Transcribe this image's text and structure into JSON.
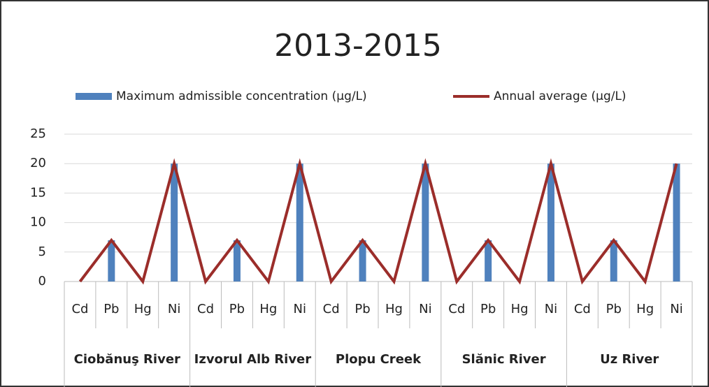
{
  "chart_data": {
    "type": "bar_line",
    "title": "2013-2015",
    "categories": [
      "Cd",
      "Pb",
      "Hg",
      "Ni",
      "Cd",
      "Pb",
      "Hg",
      "Ni",
      "Cd",
      "Pb",
      "Hg",
      "Ni",
      "Cd",
      "Pb",
      "Hg",
      "Ni",
      "Cd",
      "Pb",
      "Hg",
      "Ni"
    ],
    "groups": [
      "Ciobănuş River",
      "Izvorul Alb River",
      "Plopu Creek",
      "Slănic River",
      "Uz River"
    ],
    "series": [
      {
        "name": "Maximum admissible concentration (µg/L)",
        "type": "bar",
        "color": "#4f81bd",
        "values": [
          0,
          7,
          0,
          20,
          0,
          7,
          0,
          20,
          0,
          7,
          0,
          20,
          0,
          7,
          0,
          20,
          0,
          7,
          0,
          20
        ]
      },
      {
        "name": "Annual average (µg/L)",
        "type": "line",
        "color": "#9b2d2a",
        "values": [
          0,
          7,
          0,
          20,
          0,
          7,
          0,
          20,
          0,
          7,
          0,
          20,
          0,
          7,
          0,
          20,
          0,
          7,
          0,
          20
        ]
      }
    ],
    "ylim": [
      0,
      25
    ],
    "yticks": [
      0,
      5,
      10,
      15,
      20,
      25
    ],
    "grid": true
  }
}
